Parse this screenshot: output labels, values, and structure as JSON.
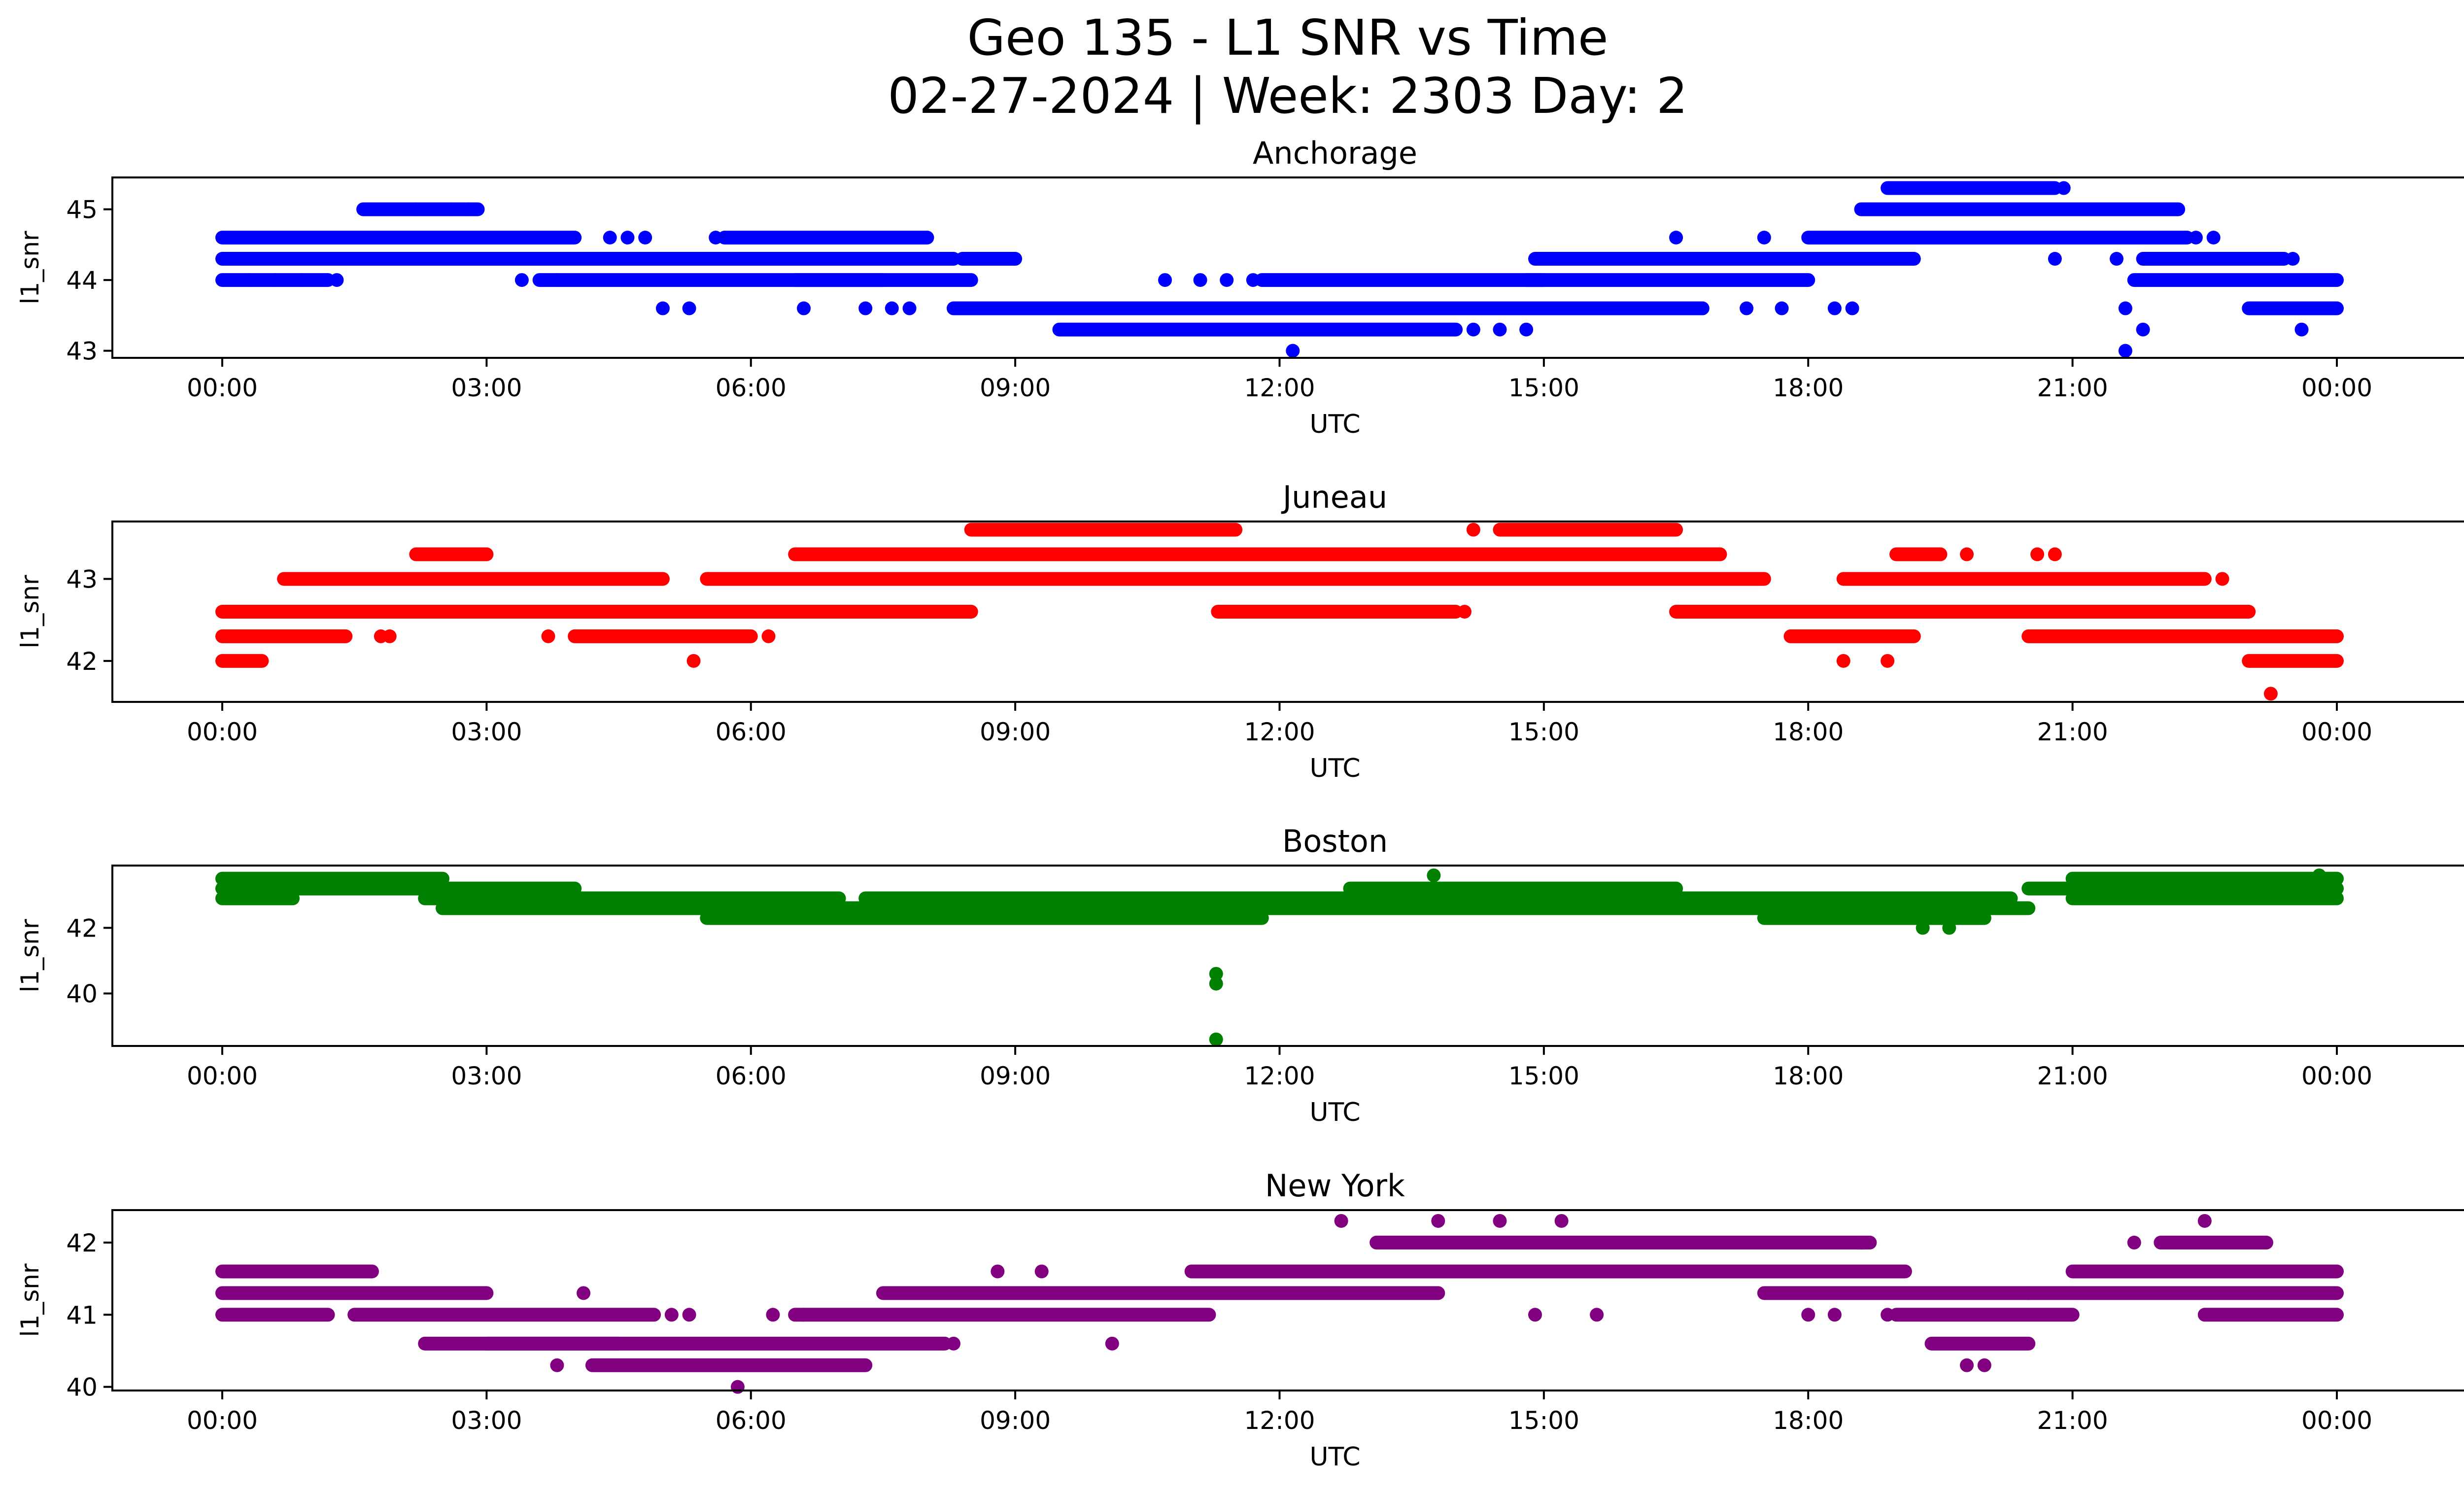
{
  "figure": {
    "title_line1": "Geo 135 - L1 SNR vs Time",
    "title_line2": "02-27-2024 | Week: 2303 Day: 2"
  },
  "chart_data": [
    {
      "type": "scatter",
      "title": "Anchorage",
      "xlabel": "UTC",
      "ylabel": "l1_snr",
      "color": "#0000ff",
      "xlim": [
        "00:00",
        "24:00"
      ],
      "xticks": [
        "00:00",
        "03:00",
        "06:00",
        "09:00",
        "12:00",
        "15:00",
        "18:00",
        "21:00",
        "00:00"
      ],
      "ylim": [
        42.9,
        45.45
      ],
      "yticks": [
        43,
        44,
        45
      ],
      "grid": false,
      "series": [
        {
          "note_bands": "dense runs of samples: [y, start_hour, end_hour]",
          "bands": [
            [
              44.0,
              0.0,
              1.2
            ],
            [
              44.3,
              0.0,
              4.2
            ],
            [
              44.6,
              0.0,
              4.0
            ],
            [
              45.0,
              1.6,
              2.9
            ],
            [
              44.3,
              2.5,
              8.3
            ],
            [
              44.0,
              3.6,
              7.5
            ],
            [
              44.6,
              5.7,
              8.0
            ],
            [
              44.3,
              8.4,
              9.0
            ],
            [
              44.0,
              6.5,
              8.5
            ],
            [
              43.6,
              8.3,
              12.0
            ],
            [
              43.3,
              9.5,
              14.0
            ],
            [
              43.6,
              12.0,
              16.0
            ],
            [
              44.0,
              11.8,
              15.0
            ],
            [
              44.3,
              14.9,
              19.0
            ],
            [
              43.6,
              14.5,
              16.8
            ],
            [
              44.0,
              14.8,
              18.0
            ],
            [
              44.6,
              18.0,
              22.3
            ],
            [
              44.3,
              16.5,
              19.2
            ],
            [
              45.0,
              18.6,
              22.2
            ],
            [
              45.3,
              18.9,
              20.8
            ],
            [
              44.3,
              21.8,
              23.4
            ],
            [
              44.0,
              21.7,
              24.0
            ],
            [
              43.6,
              23.0,
              24.0
            ]
          ],
          "points": [
            [
              0.3,
              44.0
            ],
            [
              0.6,
              44.0
            ],
            [
              0.9,
              44.0
            ],
            [
              1.3,
              44.0
            ],
            [
              2.2,
              45.0
            ],
            [
              2.6,
              45.0
            ],
            [
              2.8,
              45.0
            ],
            [
              3.4,
              44.0
            ],
            [
              3.8,
              44.0
            ],
            [
              4.4,
              44.6
            ],
            [
              4.6,
              44.6
            ],
            [
              4.8,
              44.6
            ],
            [
              5.0,
              43.6
            ],
            [
              5.3,
              43.6
            ],
            [
              5.6,
              44.6
            ],
            [
              6.6,
              44.6
            ],
            [
              6.6,
              43.6
            ],
            [
              7.3,
              43.6
            ],
            [
              7.6,
              43.6
            ],
            [
              7.8,
              43.6
            ],
            [
              8.0,
              44.6
            ],
            [
              10.7,
              44.0
            ],
            [
              11.1,
              44.0
            ],
            [
              11.4,
              44.0
            ],
            [
              11.7,
              44.0
            ],
            [
              12.15,
              43.0
            ],
            [
              14.2,
              43.3
            ],
            [
              14.5,
              43.3
            ],
            [
              14.8,
              43.3
            ],
            [
              16.1,
              44.3
            ],
            [
              16.5,
              44.6
            ],
            [
              16.8,
              43.6
            ],
            [
              17.3,
              43.6
            ],
            [
              17.5,
              44.6
            ],
            [
              17.7,
              43.6
            ],
            [
              18.3,
              43.6
            ],
            [
              18.5,
              43.6
            ],
            [
              20.8,
              44.3
            ],
            [
              20.9,
              45.3
            ],
            [
              21.5,
              44.3
            ],
            [
              21.6,
              43.6
            ],
            [
              21.6,
              43.0
            ],
            [
              21.8,
              43.3
            ],
            [
              22.4,
              44.6
            ],
            [
              22.6,
              44.6
            ],
            [
              23.5,
              44.3
            ],
            [
              23.6,
              43.3
            ]
          ]
        }
      ]
    },
    {
      "type": "scatter",
      "title": "Juneau",
      "xlabel": "UTC",
      "ylabel": "l1_snr",
      "color": "#ff0000",
      "xlim": [
        "00:00",
        "24:00"
      ],
      "xticks": [
        "00:00",
        "03:00",
        "06:00",
        "09:00",
        "12:00",
        "15:00",
        "18:00",
        "21:00",
        "00:00"
      ],
      "ylim": [
        41.5,
        43.7
      ],
      "yticks": [
        42,
        43
      ],
      "grid": false,
      "series": [
        {
          "note_bands": "dense runs of samples: [y, start_hour, end_hour]",
          "bands": [
            [
              42.0,
              0.0,
              0.45
            ],
            [
              42.3,
              0.0,
              1.4
            ],
            [
              42.6,
              0.0,
              8.5
            ],
            [
              43.0,
              0.7,
              5.0
            ],
            [
              43.3,
              2.2,
              3.0
            ],
            [
              42.3,
              4.0,
              6.0
            ],
            [
              43.0,
              5.5,
              17.5
            ],
            [
              43.3,
              6.5,
              17.0
            ],
            [
              43.6,
              8.5,
              11.5
            ],
            [
              43.6,
              14.5,
              16.5
            ],
            [
              42.6,
              11.3,
              14.0
            ],
            [
              42.6,
              16.5,
              23.0
            ],
            [
              42.3,
              17.8,
              19.2
            ],
            [
              43.0,
              18.4,
              22.5
            ],
            [
              42.3,
              20.5,
              24.0
            ],
            [
              42.0,
              23.0,
              24.0
            ],
            [
              43.3,
              19.0,
              19.5
            ]
          ],
          "points": [
            [
              1.8,
              42.3
            ],
            [
              1.9,
              42.3
            ],
            [
              3.7,
              42.3
            ],
            [
              5.35,
              42.0
            ],
            [
              6.2,
              42.3
            ],
            [
              6.5,
              42.6
            ],
            [
              12.8,
              42.6
            ],
            [
              13.2,
              42.6
            ],
            [
              14.1,
              42.6
            ],
            [
              14.2,
              43.6
            ],
            [
              14.6,
              43.6
            ],
            [
              18.4,
              42.0
            ],
            [
              18.9,
              42.0
            ],
            [
              19.8,
              43.3
            ],
            [
              20.6,
              43.3
            ],
            [
              20.8,
              43.3
            ],
            [
              22.7,
              43.0
            ],
            [
              23.25,
              41.6
            ]
          ]
        }
      ]
    },
    {
      "type": "scatter",
      "title": "Boston",
      "xlabel": "UTC",
      "ylabel": "l1_snr",
      "color": "#008000",
      "xlim": [
        "00:00",
        "24:00"
      ],
      "xticks": [
        "00:00",
        "03:00",
        "06:00",
        "09:00",
        "12:00",
        "15:00",
        "18:00",
        "21:00",
        "00:00"
      ],
      "ylim": [
        38.4,
        43.9
      ],
      "yticks": [
        40,
        42
      ],
      "grid": false,
      "series": [
        {
          "note_bands": "dense runs of samples: [y, start_hour, end_hour]",
          "bands": [
            [
              43.5,
              0.0,
              2.5
            ],
            [
              43.2,
              0.0,
              4.0
            ],
            [
              42.9,
              0.0,
              0.8
            ],
            [
              42.9,
              2.3,
              7.0
            ],
            [
              42.6,
              2.5,
              6.5
            ],
            [
              42.3,
              5.5,
              7.3
            ],
            [
              42.6,
              5.9,
              20.5
            ],
            [
              42.9,
              7.3,
              20.3
            ],
            [
              42.3,
              7.3,
              11.8
            ],
            [
              43.2,
              12.8,
              16.5
            ],
            [
              42.3,
              17.5,
              20.0
            ],
            [
              43.2,
              20.5,
              24.0
            ],
            [
              43.5,
              21.0,
              24.0
            ],
            [
              42.9,
              21.0,
              24.0
            ]
          ],
          "points": [
            [
              11.28,
              40.6
            ],
            [
              11.28,
              40.3
            ],
            [
              11.28,
              38.6
            ],
            [
              13.75,
              43.6
            ],
            [
              19.3,
              42.0
            ],
            [
              19.6,
              42.0
            ],
            [
              23.8,
              43.6
            ]
          ]
        }
      ]
    },
    {
      "type": "scatter",
      "title": "New York",
      "xlabel": "UTC",
      "ylabel": "l1_snr",
      "color": "#800080",
      "xlim": [
        "00:00",
        "24:00"
      ],
      "xticks": [
        "00:00",
        "03:00",
        "06:00",
        "09:00",
        "12:00",
        "15:00",
        "18:00",
        "21:00",
        "00:00"
      ],
      "ylim": [
        39.95,
        42.45
      ],
      "yticks": [
        40,
        41,
        42
      ],
      "grid": false,
      "series": [
        {
          "note_bands": "dense runs of samples: [y, start_hour, end_hour]",
          "bands": [
            [
              41.3,
              0.0,
              3.0
            ],
            [
              41.6,
              0.0,
              1.7
            ],
            [
              41.0,
              0.0,
              1.2
            ],
            [
              41.0,
              1.5,
              4.9
            ],
            [
              40.6,
              2.3,
              4.5
            ],
            [
              40.6,
              3.0,
              8.2
            ],
            [
              40.3,
              4.2,
              7.3
            ],
            [
              41.0,
              6.5,
              11.2
            ],
            [
              41.3,
              7.5,
              13.8
            ],
            [
              41.6,
              11.0,
              19.1
            ],
            [
              42.0,
              13.1,
              18.7
            ],
            [
              41.3,
              17.5,
              20.5
            ],
            [
              41.0,
              19.0,
              21.0
            ],
            [
              40.6,
              19.4,
              20.5
            ],
            [
              41.3,
              20.5,
              24.0
            ],
            [
              41.6,
              21.0,
              24.0
            ],
            [
              42.0,
              22.0,
              23.2
            ],
            [
              41.0,
              22.5,
              24.0
            ]
          ],
          "points": [
            [
              3.8,
              40.3
            ],
            [
              4.1,
              41.3
            ],
            [
              5.1,
              41.0
            ],
            [
              5.3,
              41.0
            ],
            [
              5.85,
              40.0
            ],
            [
              6.25,
              41.0
            ],
            [
              6.6,
              41.0
            ],
            [
              8.3,
              40.6
            ],
            [
              8.8,
              41.6
            ],
            [
              9.3,
              41.6
            ],
            [
              10.1,
              40.6
            ],
            [
              12.7,
              42.3
            ],
            [
              13.8,
              42.3
            ],
            [
              14.5,
              42.3
            ],
            [
              15.2,
              42.3
            ],
            [
              14.9,
              41.0
            ],
            [
              15.6,
              41.0
            ],
            [
              18.0,
              41.0
            ],
            [
              18.3,
              41.0
            ],
            [
              18.6,
              42.0
            ],
            [
              18.9,
              41.0
            ],
            [
              21.7,
              42.0
            ],
            [
              22.5,
              42.3
            ],
            [
              19.8,
              40.3
            ],
            [
              20.0,
              40.3
            ]
          ]
        }
      ]
    }
  ]
}
